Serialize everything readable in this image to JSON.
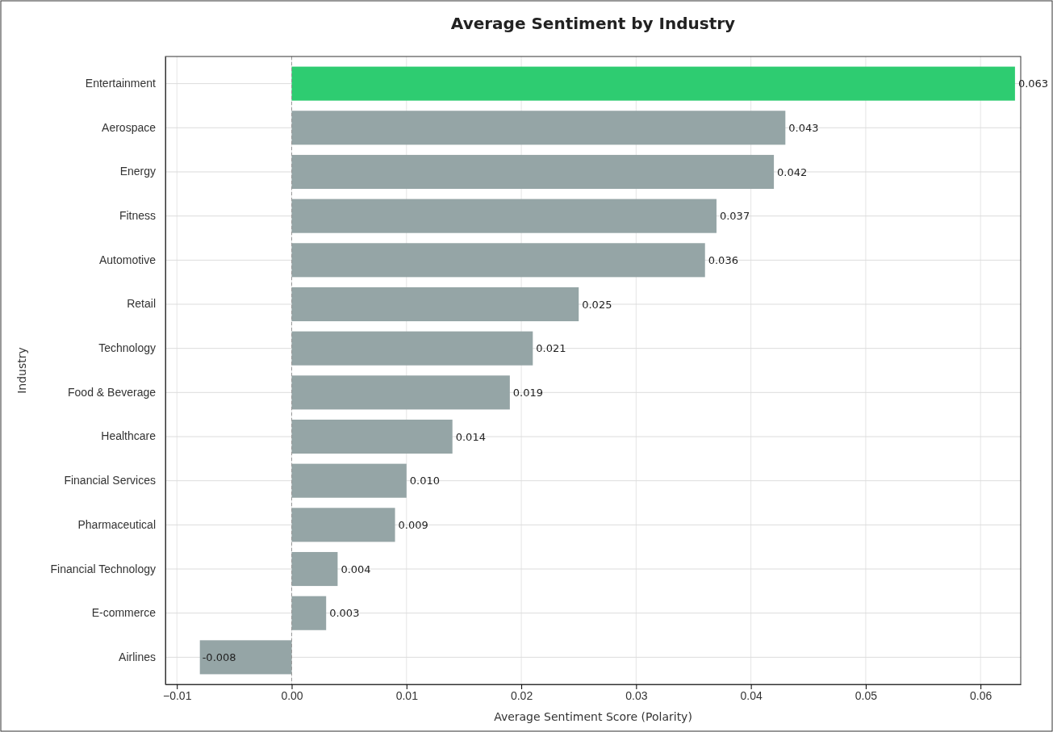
{
  "chart_data": {
    "type": "bar",
    "orientation": "horizontal",
    "title": "Average Sentiment by Industry",
    "xlabel": "Average Sentiment Score (Polarity)",
    "ylabel": "Industry",
    "categories": [
      "Entertainment",
      "Aerospace",
      "Energy",
      "Fitness",
      "Automotive",
      "Retail",
      "Technology",
      "Food & Beverage",
      "Healthcare",
      "Financial Services",
      "Pharmaceutical",
      "Financial Technology",
      "E-commerce",
      "Airlines"
    ],
    "values": [
      0.063,
      0.043,
      0.042,
      0.037,
      0.036,
      0.025,
      0.021,
      0.019,
      0.014,
      0.01,
      0.009,
      0.004,
      0.003,
      -0.008
    ],
    "colors": [
      "#2ecc71",
      "#95a5a6",
      "#95a5a6",
      "#95a5a6",
      "#95a5a6",
      "#95a5a6",
      "#95a5a6",
      "#95a5a6",
      "#95a5a6",
      "#95a5a6",
      "#95a5a6",
      "#95a5a6",
      "#95a5a6",
      "#95a5a6"
    ],
    "value_labels": [
      "0.063",
      "0.043",
      "0.042",
      "0.037",
      "0.036",
      "0.025",
      "0.021",
      "0.019",
      "0.014",
      "0.010",
      "0.009",
      "0.004",
      "0.003",
      "-0.008"
    ],
    "xlim": [
      -0.011,
      0.0635
    ],
    "xticks": [
      {
        "value": -0.01,
        "label": "−0.01"
      },
      {
        "value": 0,
        "label": "0.00"
      },
      {
        "value": 0.01,
        "label": "0.01"
      },
      {
        "value": 0.02,
        "label": "0.02"
      },
      {
        "value": 0.03,
        "label": "0.03"
      },
      {
        "value": 0.04,
        "label": "0.04"
      },
      {
        "value": 0.05,
        "label": "0.05"
      },
      {
        "value": 0.06,
        "label": "0.06"
      }
    ],
    "ref_lines": [
      {
        "axis": "x",
        "value": 0,
        "color": "#999999",
        "line_style": "dashed"
      }
    ],
    "grid": true
  }
}
